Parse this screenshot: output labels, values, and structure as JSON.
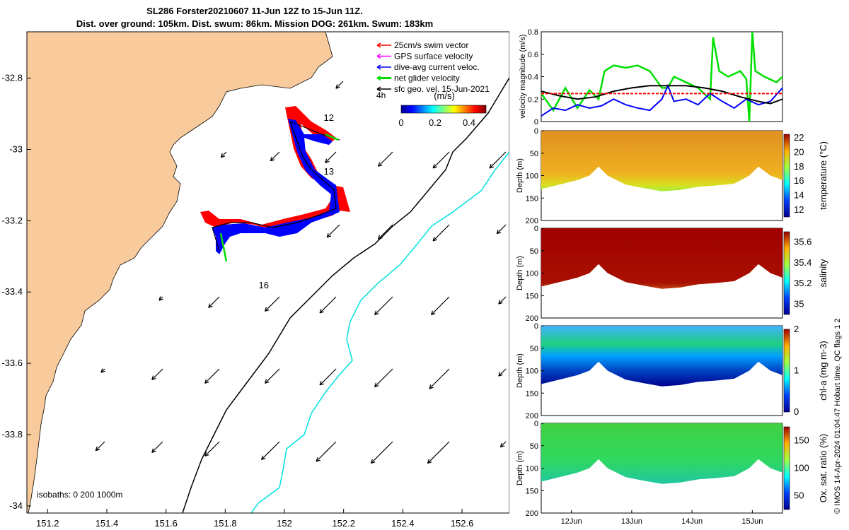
{
  "title_line1": "SL286 Forster20210607 11-Jun 12Z to 15-Jun 11Z.",
  "title_line2": "Dist. over ground: 105km. Dist. swum: 86km. Mission DOG: 261km. Swum: 183km",
  "footer_stamp": "© IMOS 14-Apr-2024 01:04:47 Hobart time. QC flags 1  2",
  "colors": {
    "land": "#f9cb9c",
    "swim": "#ff0000",
    "gps": "#ff00ff",
    "current": "#0000ff",
    "net": "#00e000",
    "geo": "#000000",
    "isobath_200": "#000000",
    "isobath_1000": "#00e0e0"
  },
  "map": {
    "x_ticks": [
      "151.2",
      "151.4",
      "151.6",
      "151.8",
      "152",
      "152.2",
      "152.4",
      "152.6"
    ],
    "y_ticks": [
      "-32.8",
      "-33",
      "-33.2",
      "-33.4",
      "-33.6",
      "-33.8",
      "-34"
    ],
    "xlim": [
      151.13,
      152.76
    ],
    "ylim": [
      -34.02,
      -32.67
    ],
    "legend": [
      {
        "label": "25cm/s swim vector",
        "color_key": "swim"
      },
      {
        "label": "GPS surface velocity",
        "color_key": "gps"
      },
      {
        "label": "dive-avg current veloc.",
        "color_key": "current"
      },
      {
        "label": "net glider velocity",
        "color_key": "net"
      },
      {
        "label": "sfc geo. vel. 15-Jun-2021",
        "color_key": "geo"
      }
    ],
    "time_step_label": "4h",
    "colorbar": {
      "label": "(m/s)",
      "ticks": [
        "0",
        "0.2",
        "0.4"
      ],
      "range": [
        0,
        0.5
      ]
    },
    "day_labels": [
      {
        "text": "12",
        "lon": 152.15,
        "lat": -32.92
      },
      {
        "text": "13",
        "lon": 152.15,
        "lat": -33.07
      },
      {
        "text": "16",
        "lon": 151.93,
        "lat": -33.39
      }
    ],
    "isobath_label": "isobaths: 0   200  1000m"
  },
  "velocity_panel": {
    "ylabel": "velocity magnitude (m/s)",
    "y_ticks": [
      "0",
      "0.2",
      "0.4",
      "0.6",
      "0.8"
    ],
    "ylim": [
      0,
      0.8
    ]
  },
  "sections": [
    {
      "name": "temperature",
      "label": "temperature (°C)",
      "ticks": [
        "22",
        "20",
        "18",
        "16",
        "14",
        "12"
      ],
      "range": [
        11,
        22.5
      ]
    },
    {
      "name": "salinity",
      "label": "salinity",
      "ticks": [
        "35.6",
        "35.4",
        "35.2",
        "35"
      ],
      "range": [
        34.9,
        35.7
      ]
    },
    {
      "name": "chla",
      "label": "chl-a (mg m-3)",
      "ticks": [
        "2",
        "1",
        "0"
      ],
      "range": [
        0,
        2
      ]
    },
    {
      "name": "oxygen",
      "label": "Ox. sat. ratio (%)",
      "ticks": [
        "150",
        "100",
        "50"
      ],
      "range": [
        25,
        175
      ]
    }
  ],
  "depth_label": "Depth (m)",
  "depth_ticks": [
    "0",
    "50",
    "100",
    "150",
    "200"
  ],
  "time_ticks": [
    "12Jun",
    "13Jun",
    "14Jun",
    "15Jun"
  ],
  "chart_data": {
    "type": "line",
    "x_unit": "day (June 2021)",
    "series": [
      {
        "color": "#00e000",
        "x": [
          11.5,
          11.7,
          11.9,
          12.1,
          12.3,
          12.45,
          12.55,
          12.7,
          12.9,
          13.1,
          13.3,
          13.5,
          13.6,
          13.7,
          13.9,
          14.1,
          14.3,
          14.35,
          14.45,
          14.6,
          14.8,
          14.9,
          14.95,
          15.0,
          15.05,
          15.2,
          15.4,
          15.5
        ],
        "y": [
          0.25,
          0.1,
          0.3,
          0.12,
          0.28,
          0.2,
          0.45,
          0.5,
          0.48,
          0.5,
          0.45,
          0.3,
          0.3,
          0.4,
          0.35,
          0.3,
          0.2,
          0.75,
          0.45,
          0.4,
          0.45,
          0.38,
          0.0,
          0.8,
          0.45,
          0.4,
          0.35,
          0.4
        ]
      },
      {
        "color": "#0000ff",
        "x": [
          11.5,
          11.7,
          11.9,
          12.1,
          12.3,
          12.5,
          12.7,
          12.9,
          13.1,
          13.3,
          13.5,
          13.6,
          13.7,
          13.9,
          14.1,
          14.3,
          14.5,
          14.7,
          14.9,
          15.1,
          15.3,
          15.5
        ],
        "y": [
          0.05,
          0.12,
          0.1,
          0.15,
          0.12,
          0.14,
          0.2,
          0.15,
          0.12,
          0.1,
          0.2,
          0.32,
          0.18,
          0.2,
          0.15,
          0.25,
          0.18,
          0.12,
          0.2,
          0.15,
          0.18,
          0.3
        ]
      },
      {
        "color": "#000000",
        "x": [
          11.5,
          11.8,
          12.1,
          12.4,
          12.7,
          13.0,
          13.3,
          13.6,
          13.9,
          14.2,
          14.5,
          14.8,
          15.1,
          15.3,
          15.5
        ],
        "y": [
          0.27,
          0.23,
          0.2,
          0.22,
          0.27,
          0.3,
          0.32,
          0.32,
          0.32,
          0.3,
          0.27,
          0.22,
          0.18,
          0.16,
          0.2
        ]
      },
      {
        "color": "#ff0000",
        "x": [
          11.5,
          15.5
        ],
        "y": [
          0.25,
          0.25
        ]
      }
    ]
  }
}
